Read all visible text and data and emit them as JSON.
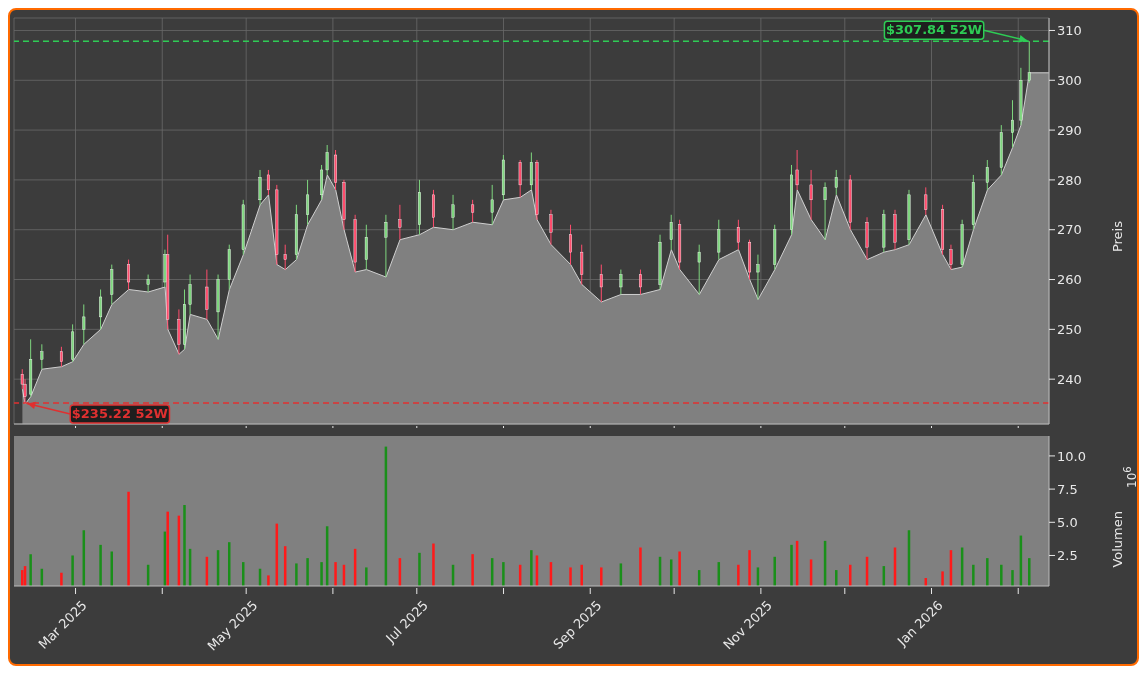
{
  "chart_data": [
    {
      "type": "candlestick",
      "ylabel": "Preis",
      "grid": true,
      "tick_labels": "y",
      "xlim": [
        "2025-02-07",
        "2026-02-12"
      ],
      "xticks": [
        {
          "value": "2025-03-01",
          "label": null
        },
        {
          "value": "2025-04-01",
          "label": null
        },
        {
          "value": "2025-05-01",
          "label": null
        },
        {
          "value": "2025-06-01",
          "label": null
        },
        {
          "value": "2025-07-01",
          "label": null
        },
        {
          "value": "2025-08-01",
          "label": null
        },
        {
          "value": "2025-09-01",
          "label": null
        },
        {
          "value": "2025-10-01",
          "label": null
        },
        {
          "value": "2025-11-01",
          "label": null
        },
        {
          "value": "2025-12-01",
          "label": null
        },
        {
          "value": "2026-01-01",
          "label": null
        },
        {
          "value": "2026-02-01",
          "label": null
        }
      ],
      "ylim": [
        231,
        312.5
      ],
      "yticks": [
        240,
        250,
        260,
        270,
        280,
        290,
        300,
        310
      ],
      "x": [
        "2025-02-10",
        "2025-02-11",
        "2025-02-13",
        "2025-02-17",
        "2025-02-24",
        "2025-02-28",
        "2025-03-04",
        "2025-03-10",
        "2025-03-14",
        "2025-03-20",
        "2025-03-27",
        "2025-04-02",
        "2025-04-03",
        "2025-04-07",
        "2025-04-09",
        "2025-04-11",
        "2025-04-17",
        "2025-04-21",
        "2025-04-25",
        "2025-04-30",
        "2025-05-06",
        "2025-05-09",
        "2025-05-12",
        "2025-05-15",
        "2025-05-19",
        "2025-05-23",
        "2025-05-28",
        "2025-05-30",
        "2025-06-02",
        "2025-06-05",
        "2025-06-09",
        "2025-06-13",
        "2025-06-20",
        "2025-06-25",
        "2025-07-02",
        "2025-07-07",
        "2025-07-14",
        "2025-07-21",
        "2025-07-28",
        "2025-08-01",
        "2025-08-07",
        "2025-08-11",
        "2025-08-13",
        "2025-08-18",
        "2025-08-25",
        "2025-08-29",
        "2025-09-05",
        "2025-09-12",
        "2025-09-19",
        "2025-09-26",
        "2025-09-30",
        "2025-10-03",
        "2025-10-10",
        "2025-10-17",
        "2025-10-24",
        "2025-10-28",
        "2025-10-31",
        "2025-11-06",
        "2025-11-12",
        "2025-11-14",
        "2025-11-19",
        "2025-11-24",
        "2025-11-28",
        "2025-12-03",
        "2025-12-09",
        "2025-12-15",
        "2025-12-19",
        "2025-12-24",
        "2025-12-30",
        "2026-01-05",
        "2026-01-08",
        "2026-01-12",
        "2026-01-16",
        "2026-01-21",
        "2026-01-26",
        "2026-01-30",
        "2026-02-02",
        "2026-02-05"
      ],
      "series": [
        {
          "type": "area",
          "color": "#808080",
          "x": [
            "2025-02-10",
            "2025-02-11",
            "2025-02-13",
            "2025-02-17",
            "2025-02-24",
            "2025-02-28",
            "2025-03-04",
            "2025-03-10",
            "2025-03-14",
            "2025-03-20",
            "2025-03-27",
            "2025-04-02",
            "2025-04-03",
            "2025-04-07",
            "2025-04-09",
            "2025-04-11",
            "2025-04-17",
            "2025-04-21",
            "2025-04-25",
            "2025-04-30",
            "2025-05-06",
            "2025-05-09",
            "2025-05-12",
            "2025-05-15",
            "2025-05-19",
            "2025-05-23",
            "2025-05-28",
            "2025-05-30",
            "2025-06-02",
            "2025-06-05",
            "2025-06-09",
            "2025-06-13",
            "2025-06-20",
            "2025-06-25",
            "2025-07-02",
            "2025-07-07",
            "2025-07-14",
            "2025-07-21",
            "2025-07-28",
            "2025-08-01",
            "2025-08-07",
            "2025-08-11",
            "2025-08-13",
            "2025-08-18",
            "2025-08-25",
            "2025-08-29",
            "2025-09-05",
            "2025-09-12",
            "2025-09-19",
            "2025-09-26",
            "2025-09-30",
            "2025-10-03",
            "2025-10-10",
            "2025-10-17",
            "2025-10-24",
            "2025-10-28",
            "2025-10-31",
            "2025-11-06",
            "2025-11-12",
            "2025-11-14",
            "2025-11-19",
            "2025-11-24",
            "2025-11-28",
            "2025-12-03",
            "2025-12-09",
            "2025-12-15",
            "2025-12-19",
            "2025-12-24",
            "2025-12-30",
            "2026-01-05",
            "2026-01-08",
            "2026-01-12",
            "2026-01-16",
            "2026-01-21",
            "2026-01-26",
            "2026-01-30",
            "2026-02-02",
            "2026-02-05",
            "2026-02-12"
          ],
          "values": [
            238,
            235,
            236.5,
            242,
            242.5,
            243.5,
            247,
            250,
            255,
            258,
            257.5,
            258.5,
            250,
            245,
            246,
            253,
            252,
            248,
            258,
            265,
            275,
            277,
            263,
            262,
            264,
            271,
            276,
            281,
            278,
            270,
            261.5,
            262,
            260.5,
            268,
            269,
            270.5,
            270,
            271.5,
            271,
            276,
            276.5,
            278,
            272,
            267,
            263,
            259,
            255.5,
            257,
            257,
            258,
            266,
            262,
            257,
            264,
            266,
            260,
            256,
            262,
            269,
            278,
            272,
            268,
            277,
            270,
            264,
            265.5,
            266,
            267,
            273,
            265,
            262,
            262.5,
            270,
            278,
            281,
            286.5,
            291,
            301.5,
            301.5
          ]
        },
        {
          "ohlc": [
            [
              241,
              242,
              238,
              239
            ],
            [
              239,
              240,
              235.22,
              236.5
            ],
            [
              237,
              248,
              236.5,
              244
            ],
            [
              244,
              247,
              242,
              245.5
            ],
            [
              245.5,
              246.5,
              242.5,
              243.5
            ],
            [
              244,
              251,
              243.5,
              249.5
            ],
            [
              250,
              255,
              247,
              252.5
            ],
            [
              252.5,
              258,
              250,
              256.5
            ],
            [
              257,
              263,
              255,
              262
            ],
            [
              263,
              264,
              258,
              259.5
            ],
            [
              259,
              261,
              257.5,
              260
            ],
            [
              259.5,
              266,
              258.5,
              265
            ],
            [
              265,
              269,
              250,
              252
            ],
            [
              252,
              254,
              245,
              247
            ],
            [
              247,
              258,
              246,
              255
            ],
            [
              255,
              261,
              253,
              259
            ],
            [
              258.5,
              262,
              252,
              254
            ],
            [
              253.5,
              261,
              248,
              260
            ],
            [
              260,
              267,
              258,
              266
            ],
            [
              266,
              276,
              265,
              275
            ],
            [
              276,
              282,
              275,
              280.5
            ],
            [
              281,
              282,
              277,
              278
            ],
            [
              278,
              279,
              263,
              265
            ],
            [
              265,
              267,
              262,
              264
            ],
            [
              265,
              275,
              264,
              273
            ],
            [
              273,
              280,
              271,
              277
            ],
            [
              277,
              283,
              276,
              282
            ],
            [
              282,
              287,
              281,
              285.5
            ],
            [
              285,
              286,
              278,
              279.5
            ],
            [
              279.5,
              280,
              270,
              272
            ],
            [
              272,
              273,
              261.5,
              263.5
            ],
            [
              264,
              271,
              262,
              268.5
            ],
            [
              268.5,
              273,
              260.5,
              271.5
            ],
            [
              272,
              275,
              268,
              270.5
            ],
            [
              271,
              280,
              269,
              277.5
            ],
            [
              277,
              278,
              270.5,
              272.5
            ],
            [
              272.5,
              277,
              270,
              275
            ],
            [
              275,
              276,
              271.5,
              273.5
            ],
            [
              273.5,
              279,
              271,
              276
            ],
            [
              277,
              285,
              276,
              284
            ],
            [
              283.5,
              284,
              276.5,
              279
            ],
            [
              279,
              285.5,
              278,
              283.5
            ],
            [
              283.5,
              284,
              272,
              273
            ],
            [
              273,
              274,
              267,
              269.5
            ],
            [
              269,
              271,
              263,
              265.5
            ],
            [
              265.5,
              267,
              259,
              261
            ],
            [
              261,
              263,
              255.5,
              258.5
            ],
            [
              258.5,
              262,
              257,
              261
            ],
            [
              261,
              262,
              257,
              258.5
            ],
            [
              259,
              269,
              258,
              267.5
            ],
            [
              268,
              273,
              266,
              271.5
            ],
            [
              271,
              272,
              262,
              263.5
            ],
            [
              263.5,
              267,
              257,
              265.5
            ],
            [
              265.5,
              272,
              264,
              270
            ],
            [
              270.5,
              272,
              266,
              267.5
            ],
            [
              267.5,
              268,
              260,
              261.5
            ],
            [
              261.5,
              265,
              256,
              263
            ],
            [
              263,
              271,
              262,
              270
            ],
            [
              270,
              283,
              269,
              281
            ],
            [
              282,
              286,
              278,
              279
            ],
            [
              279,
              282,
              272,
              276
            ],
            [
              276,
              279.5,
              268,
              278.5
            ],
            [
              278.5,
              282,
              277,
              280.5
            ],
            [
              280,
              281,
              270,
              271.5
            ],
            [
              271.5,
              272.5,
              264,
              266.5
            ],
            [
              266.5,
              274,
              265.5,
              273
            ],
            [
              273,
              274,
              266,
              267.5
            ],
            [
              268,
              278,
              267,
              277
            ],
            [
              277,
              278.5,
              273,
              274
            ],
            [
              274,
              275,
              265,
              266
            ],
            [
              266,
              267,
              262,
              263
            ],
            [
              263,
              272,
              262.5,
              271
            ],
            [
              271,
              281,
              270,
              279.5
            ],
            [
              279.5,
              284,
              278,
              282.5
            ],
            [
              282.5,
              291,
              281,
              289.5
            ],
            [
              289.5,
              296,
              286.5,
              292
            ],
            [
              292,
              302.5,
              291,
              300
            ],
            [
              300,
              307.84,
              299.5,
              301.5
            ]
          ],
          "colors": [
            "#ff4d6d",
            "#ff4d6d",
            "#7fd67f",
            "#7fd67f",
            "#ff4d6d",
            "#7fd67f",
            "#7fd67f",
            "#7fd67f",
            "#7fd67f",
            "#ff4d6d",
            "#7fd67f",
            "#7fd67f",
            "#ff4d6d",
            "#ff4d6d",
            "#7fd67f",
            "#7fd67f",
            "#ff4d6d",
            "#7fd67f",
            "#7fd67f",
            "#7fd67f",
            "#7fd67f",
            "#ff4d6d",
            "#ff4d6d",
            "#ff4d6d",
            "#7fd67f",
            "#7fd67f",
            "#7fd67f",
            "#7fd67f",
            "#ff4d6d",
            "#ff4d6d",
            "#ff4d6d",
            "#7fd67f",
            "#7fd67f",
            "#ff4d6d",
            "#7fd67f",
            "#ff4d6d",
            "#7fd67f",
            "#ff4d6d",
            "#7fd67f",
            "#7fd67f",
            "#ff4d6d",
            "#7fd67f",
            "#ff4d6d",
            "#ff4d6d",
            "#ff4d6d",
            "#ff4d6d",
            "#ff4d6d",
            "#7fd67f",
            "#ff4d6d",
            "#7fd67f",
            "#7fd67f",
            "#ff4d6d",
            "#7fd67f",
            "#7fd67f",
            "#ff4d6d",
            "#ff4d6d",
            "#7fd67f",
            "#7fd67f",
            "#7fd67f",
            "#ff4d6d",
            "#ff4d6d",
            "#7fd67f",
            "#7fd67f",
            "#ff4d6d",
            "#ff4d6d",
            "#7fd67f",
            "#ff4d6d",
            "#7fd67f",
            "#ff4d6d",
            "#ff4d6d",
            "#ff4d6d",
            "#7fd67f",
            "#7fd67f",
            "#7fd67f",
            "#7fd67f",
            "#7fd67f",
            "#7fd67f",
            "#7fd67f"
          ]
        }
      ],
      "ref_lines": [
        {
          "axis": "y",
          "value": 307.84,
          "color": "#2ecc55",
          "line_style": "dashed"
        },
        {
          "axis": "y",
          "value": 235.22,
          "color": "#e03030",
          "line_style": "dashed"
        }
      ],
      "annotations": [
        {
          "text": "$307.84 52W",
          "x": "2026-02-05",
          "y": 307.84
        },
        {
          "text": "$235.22 52W",
          "x": "2025-02-11",
          "y": 235.22
        }
      ]
    },
    {
      "type": "bar",
      "ylabel": "Volumen",
      "annotations": [
        "10$^{6}$"
      ],
      "xlim": [
        "2025-02-07",
        "2026-02-12"
      ],
      "xticks": [
        {
          "value": "2025-03-01",
          "label": "Mar 2025"
        },
        {
          "value": "2025-04-01",
          "label": null
        },
        {
          "value": "2025-05-01",
          "label": "May 2025"
        },
        {
          "value": "2025-06-01",
          "label": null
        },
        {
          "value": "2025-07-01",
          "label": "Jul 2025"
        },
        {
          "value": "2025-08-01",
          "label": null
        },
        {
          "value": "2025-09-01",
          "label": "Sep 2025"
        },
        {
          "value": "2025-10-01",
          "label": null
        },
        {
          "value": "2025-11-01",
          "label": "Nov 2025"
        },
        {
          "value": "2025-12-01",
          "label": null
        },
        {
          "value": "2026-01-01",
          "label": "Jan 2026"
        },
        {
          "value": "2026-02-01",
          "label": null
        }
      ],
      "ylim": [
        0.2,
        11.5
      ],
      "yticks": [
        2.5,
        {
          "value": 5,
          "label": "5.0"
        },
        7.5,
        {
          "value": 10,
          "label": "10.0"
        }
      ],
      "x": [
        "2025-02-10",
        "2025-02-11",
        "2025-02-13",
        "2025-02-17",
        "2025-02-24",
        "2025-02-28",
        "2025-03-04",
        "2025-03-10",
        "2025-03-14",
        "2025-03-20",
        "2025-03-27",
        "2025-04-02",
        "2025-04-03",
        "2025-04-07",
        "2025-04-09",
        "2025-04-11",
        "2025-04-17",
        "2025-04-21",
        "2025-04-25",
        "2025-04-30",
        "2025-05-06",
        "2025-05-09",
        "2025-05-12",
        "2025-05-15",
        "2025-05-19",
        "2025-05-23",
        "2025-05-28",
        "2025-05-30",
        "2025-06-02",
        "2025-06-05",
        "2025-06-09",
        "2025-06-13",
        "2025-06-20",
        "2025-06-25",
        "2025-07-02",
        "2025-07-07",
        "2025-07-14",
        "2025-07-21",
        "2025-07-28",
        "2025-08-01",
        "2025-08-07",
        "2025-08-11",
        "2025-08-13",
        "2025-08-18",
        "2025-08-25",
        "2025-08-29",
        "2025-09-05",
        "2025-09-12",
        "2025-09-19",
        "2025-09-26",
        "2025-09-30",
        "2025-10-03",
        "2025-10-10",
        "2025-10-17",
        "2025-10-24",
        "2025-10-28",
        "2025-10-31",
        "2025-11-06",
        "2025-11-12",
        "2025-11-14",
        "2025-11-19",
        "2025-11-24",
        "2025-11-28",
        "2025-12-03",
        "2025-12-09",
        "2025-12-15",
        "2025-12-19",
        "2025-12-24",
        "2025-12-30",
        "2026-01-05",
        "2026-01-08",
        "2026-01-12",
        "2026-01-16",
        "2026-01-21",
        "2026-01-26",
        "2026-01-30",
        "2026-02-02",
        "2026-02-05"
      ],
      "values": [
        1.4,
        1.7,
        2.6,
        1.5,
        1.2,
        2.5,
        4.4,
        3.3,
        2.8,
        7.3,
        1.8,
        4.3,
        5.8,
        5.5,
        6.3,
        3.0,
        2.4,
        2.9,
        3.5,
        2.0,
        1.5,
        1.0,
        4.9,
        3.2,
        1.9,
        2.3,
        2.0,
        4.7,
        2.0,
        1.8,
        3.0,
        1.6,
        10.7,
        2.3,
        2.7,
        3.4,
        1.8,
        2.6,
        2.3,
        2.0,
        1.8,
        2.9,
        2.5,
        2.0,
        1.6,
        1.8,
        1.6,
        1.9,
        3.1,
        2.4,
        2.2,
        2.8,
        1.4,
        2.0,
        1.8,
        2.9,
        1.6,
        2.4,
        3.3,
        3.6,
        2.2,
        3.6,
        1.4,
        1.8,
        2.4,
        1.7,
        3.1,
        4.4,
        0.8,
        1.3,
        2.9,
        3.1,
        1.8,
        2.3,
        1.8,
        1.4,
        4.0,
        2.3
      ],
      "colors": [
        "#ff1a1a",
        "#ff1a1a",
        "#1a8f1a",
        "#1a8f1a",
        "#ff1a1a",
        "#1a8f1a",
        "#1a8f1a",
        "#1a8f1a",
        "#1a8f1a",
        "#ff1a1a",
        "#1a8f1a",
        "#1a8f1a",
        "#ff1a1a",
        "#ff1a1a",
        "#1a8f1a",
        "#1a8f1a",
        "#ff1a1a",
        "#1a8f1a",
        "#1a8f1a",
        "#1a8f1a",
        "#1a8f1a",
        "#ff1a1a",
        "#ff1a1a",
        "#ff1a1a",
        "#1a8f1a",
        "#1a8f1a",
        "#1a8f1a",
        "#1a8f1a",
        "#ff1a1a",
        "#ff1a1a",
        "#ff1a1a",
        "#1a8f1a",
        "#1a8f1a",
        "#ff1a1a",
        "#1a8f1a",
        "#ff1a1a",
        "#1a8f1a",
        "#ff1a1a",
        "#1a8f1a",
        "#1a8f1a",
        "#ff1a1a",
        "#1a8f1a",
        "#ff1a1a",
        "#ff1a1a",
        "#ff1a1a",
        "#ff1a1a",
        "#ff1a1a",
        "#1a8f1a",
        "#ff1a1a",
        "#1a8f1a",
        "#1a8f1a",
        "#ff1a1a",
        "#1a8f1a",
        "#1a8f1a",
        "#ff1a1a",
        "#ff1a1a",
        "#1a8f1a",
        "#1a8f1a",
        "#1a8f1a",
        "#ff1a1a",
        "#ff1a1a",
        "#1a8f1a",
        "#1a8f1a",
        "#ff1a1a",
        "#ff1a1a",
        "#1a8f1a",
        "#ff1a1a",
        "#1a8f1a",
        "#ff1a1a",
        "#ff1a1a",
        "#ff1a1a",
        "#1a8f1a",
        "#1a8f1a",
        "#1a8f1a",
        "#1a8f1a",
        "#1a8f1a",
        "#1a8f1a",
        "#1a8f1a"
      ]
    }
  ]
}
